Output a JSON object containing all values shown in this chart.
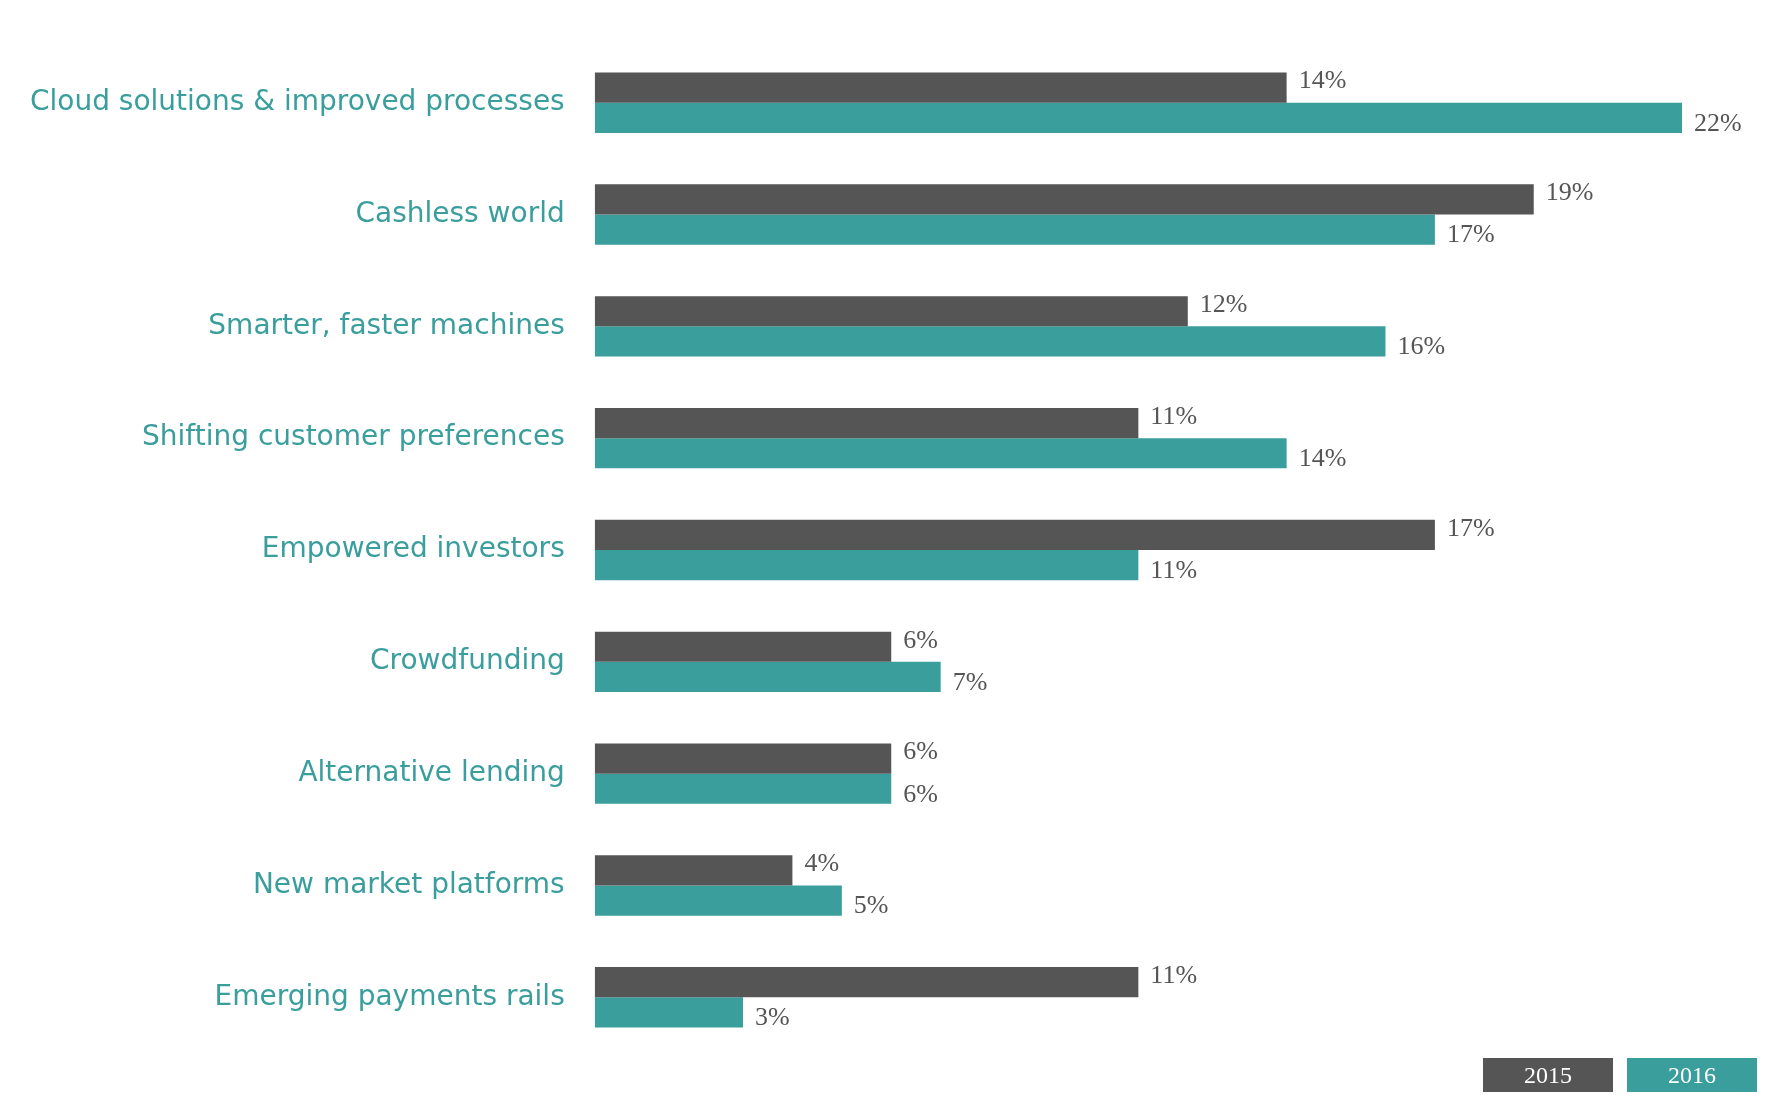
{
  "chart_data": {
    "type": "bar",
    "orientation": "horizontal",
    "categories": [
      "Cloud solutions & improved processes",
      "Cashless world",
      "Smarter, faster machines",
      "Shifting customer preferences",
      "Empowered investors",
      "Crowdfunding",
      "Alternative lending",
      "New market platforms",
      "Emerging payments rails"
    ],
    "series": [
      {
        "name": "2015",
        "color": "#555555",
        "values": [
          14,
          19,
          12,
          11,
          17,
          6,
          6,
          4,
          11
        ],
        "value_labels": [
          "14%",
          "19%",
          "12%",
          "11%",
          "17%",
          "6%",
          "6%",
          "4%",
          "11%"
        ]
      },
      {
        "name": "2016",
        "color": "#3a9e9c",
        "values": [
          22,
          17,
          16,
          14,
          11,
          7,
          6,
          5,
          3
        ],
        "value_labels": [
          "22%",
          "17%",
          "16%",
          "14%",
          "11%",
          "7%",
          "6%",
          "5%",
          "3%"
        ]
      }
    ],
    "xlim": [
      0,
      22
    ],
    "tick_labels": "y",
    "legend": "bottom right"
  }
}
